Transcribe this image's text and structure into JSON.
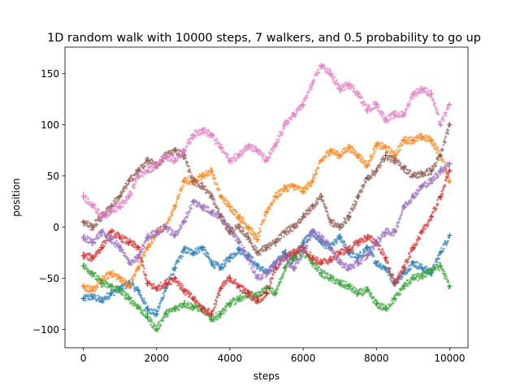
{
  "chart_data": {
    "type": "scatter",
    "title": "1D random walk with 10000 steps, 7 walkers, and 0.5 probability to go up",
    "xlabel": "steps",
    "ylabel": "position",
    "xlim": [
      -500,
      10500
    ],
    "ylim": [
      -118,
      176
    ],
    "xticks": [
      0,
      2000,
      4000,
      6000,
      8000,
      10000
    ],
    "yticks": [
      -100,
      -50,
      0,
      50,
      100,
      150
    ],
    "grid": false,
    "legend": "none",
    "marker": "+",
    "series": [
      {
        "color": "#1f77b4",
        "x": [
          0,
          250,
          500,
          750,
          1000,
          1250,
          1500,
          1750,
          2000,
          2250,
          2500,
          2750,
          3000,
          3250,
          3500,
          3750,
          4000,
          4250,
          4500,
          4750,
          5000,
          5250,
          5500,
          5750,
          6000,
          6250,
          6500,
          6750,
          7000,
          7250,
          7500,
          7750,
          8000,
          8250,
          8500,
          8750,
          9000,
          9250,
          9500,
          9750,
          10000
        ],
        "values": [
          -70,
          -68,
          -72,
          -65,
          -60,
          -55,
          -62,
          -80,
          -85,
          -60,
          -40,
          -22,
          -25,
          -20,
          -35,
          -40,
          -30,
          -22,
          -28,
          -38,
          -45,
          -35,
          -25,
          -30,
          -15,
          -5,
          -15,
          -20,
          -10,
          -25,
          -30,
          -20,
          -35,
          -40,
          -55,
          -45,
          -35,
          -40,
          -45,
          -25,
          -8
        ]
      },
      {
        "color": "#ff7f0e",
        "x": [
          0,
          250,
          500,
          750,
          1000,
          1250,
          1500,
          1750,
          2000,
          2250,
          2500,
          2750,
          3000,
          3250,
          3500,
          3750,
          4000,
          4250,
          4500,
          4750,
          5000,
          5250,
          5500,
          5750,
          6000,
          6250,
          6500,
          6750,
          7000,
          7250,
          7500,
          7750,
          8000,
          8250,
          8500,
          8750,
          9000,
          9250,
          9500,
          9750,
          10000
        ],
        "values": [
          -58,
          -62,
          -52,
          -45,
          -50,
          -58,
          -40,
          -20,
          -5,
          0,
          20,
          45,
          45,
          50,
          55,
          30,
          20,
          10,
          0,
          -12,
          15,
          30,
          38,
          40,
          35,
          45,
          65,
          75,
          70,
          78,
          70,
          60,
          80,
          78,
          70,
          85,
          85,
          88,
          85,
          70,
          45
        ]
      },
      {
        "color": "#2ca02c",
        "x": [
          0,
          250,
          500,
          750,
          1000,
          1250,
          1500,
          1750,
          2000,
          2250,
          2500,
          2750,
          3000,
          3250,
          3500,
          3750,
          4000,
          4250,
          4500,
          4750,
          5000,
          5250,
          5500,
          5750,
          6000,
          6250,
          6500,
          6750,
          7000,
          7250,
          7500,
          7750,
          8000,
          8250,
          8500,
          8750,
          9000,
          9250,
          9500,
          9750,
          10000
        ],
        "values": [
          -38,
          -45,
          -55,
          -58,
          -62,
          -70,
          -78,
          -88,
          -100,
          -85,
          -80,
          -75,
          -78,
          -80,
          -90,
          -85,
          -75,
          -70,
          -65,
          -68,
          -60,
          -65,
          -40,
          -30,
          -25,
          -35,
          -45,
          -50,
          -55,
          -58,
          -65,
          -62,
          -75,
          -80,
          -70,
          -58,
          -50,
          -48,
          -42,
          -38,
          -58
        ]
      },
      {
        "color": "#d62728",
        "x": [
          0,
          250,
          500,
          750,
          1000,
          1250,
          1500,
          1750,
          2000,
          2250,
          2500,
          2750,
          3000,
          3250,
          3500,
          3750,
          4000,
          4250,
          4500,
          4750,
          5000,
          5250,
          5500,
          5750,
          6000,
          6250,
          6500,
          6750,
          7000,
          7250,
          7500,
          7750,
          8000,
          8250,
          8500,
          8750,
          9000,
          9250,
          9500,
          9750,
          10000
        ],
        "values": [
          -28,
          -30,
          -20,
          -5,
          -10,
          -15,
          -20,
          -55,
          -60,
          -55,
          -50,
          -62,
          -70,
          -80,
          -85,
          -60,
          -50,
          -58,
          -65,
          -72,
          -65,
          -40,
          -30,
          -25,
          -20,
          -30,
          -35,
          -32,
          -25,
          -22,
          -15,
          -10,
          -15,
          -30,
          -55,
          -40,
          -20,
          -5,
          10,
          30,
          55
        ]
      },
      {
        "color": "#9467bd",
        "x": [
          0,
          250,
          500,
          750,
          1000,
          1250,
          1500,
          1750,
          2000,
          2250,
          2500,
          2750,
          3000,
          3250,
          3500,
          3750,
          4000,
          4250,
          4500,
          4750,
          5000,
          5250,
          5500,
          5750,
          6000,
          6250,
          6500,
          6750,
          7000,
          7250,
          7500,
          7750,
          8000,
          8250,
          8500,
          8750,
          9000,
          9250,
          9500,
          9750,
          10000
        ],
        "values": [
          -10,
          -15,
          -5,
          -12,
          -20,
          -35,
          -30,
          -10,
          -5,
          0,
          -8,
          5,
          25,
          20,
          15,
          10,
          0,
          -15,
          -30,
          -50,
          -45,
          -35,
          -30,
          -40,
          -25,
          -5,
          -10,
          -20,
          -35,
          -40,
          -35,
          -28,
          -15,
          -5,
          -5,
          20,
          30,
          40,
          45,
          55,
          62
        ]
      },
      {
        "color": "#8c564b",
        "x": [
          0,
          250,
          500,
          750,
          1000,
          1250,
          1500,
          1750,
          2000,
          2250,
          2500,
          2750,
          3000,
          3250,
          3500,
          3750,
          4000,
          4250,
          4500,
          4750,
          5000,
          5250,
          5500,
          5750,
          6000,
          6250,
          6500,
          6750,
          7000,
          7250,
          7500,
          7750,
          8000,
          8250,
          8500,
          8750,
          9000,
          9250,
          9500,
          9750,
          10000
        ],
        "values": [
          5,
          0,
          10,
          20,
          30,
          45,
          55,
          65,
          60,
          70,
          75,
          70,
          45,
          40,
          30,
          10,
          -5,
          0,
          -10,
          -25,
          -20,
          -15,
          -5,
          0,
          10,
          20,
          30,
          5,
          0,
          10,
          30,
          48,
          55,
          70,
          65,
          58,
          50,
          52,
          55,
          70,
          100
        ]
      },
      {
        "color": "#e377c2",
        "x": [
          0,
          250,
          500,
          750,
          1000,
          1250,
          1500,
          1750,
          2000,
          2250,
          2500,
          2750,
          3000,
          3250,
          3500,
          3750,
          4000,
          4250,
          4500,
          4750,
          5000,
          5250,
          5500,
          5750,
          6000,
          6250,
          6500,
          6750,
          7000,
          7250,
          7500,
          7750,
          8000,
          8250,
          8500,
          8750,
          9000,
          9250,
          9500,
          9750,
          10000
        ],
        "values": [
          30,
          22,
          10,
          15,
          20,
          30,
          50,
          55,
          60,
          70,
          65,
          75,
          90,
          95,
          90,
          78,
          65,
          70,
          80,
          75,
          65,
          80,
          100,
          110,
          120,
          140,
          158,
          150,
          135,
          140,
          130,
          115,
          120,
          105,
          110,
          110,
          130,
          135,
          130,
          100,
          120
        ]
      }
    ]
  }
}
